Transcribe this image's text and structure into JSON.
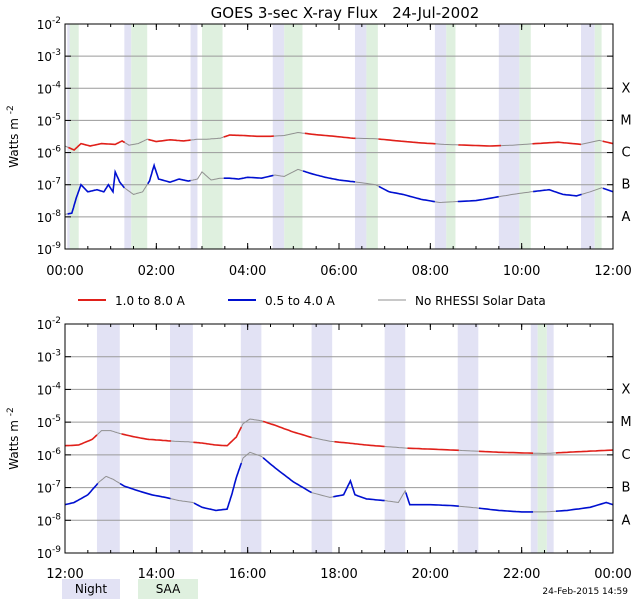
{
  "chart_data": {
    "type": "line",
    "title": "GOES 3-sec X-ray Flux   24-Jul-2002",
    "ylabel": "Watts m",
    "ylabel_sup": "-2",
    "yscale": "log",
    "ylim_exp": [
      -9,
      -2
    ],
    "ytick_exponents": [
      -9,
      -8,
      -7,
      -6,
      -5,
      -4,
      -3,
      -2
    ],
    "ytick_base": "10",
    "flare_classes": [
      {
        "label": "A",
        "exp": -8
      },
      {
        "label": "B",
        "exp": -7
      },
      {
        "label": "C",
        "exp": -6
      },
      {
        "label": "M",
        "exp": -5
      },
      {
        "label": "X",
        "exp": -4
      }
    ],
    "grid": true,
    "colors": {
      "long": "#e0201a",
      "short": "#0010d0",
      "nodata": "#909090",
      "night": "#e2e2f4",
      "saa": "#dff0df"
    },
    "legend": {
      "position": "between-panels",
      "entries": [
        {
          "key": "long",
          "label": "1.0 to 8.0 A"
        },
        {
          "key": "short",
          "label": "0.5 to 4.0 A"
        },
        {
          "key": "nodata",
          "label": "No RHESSI Solar Data"
        }
      ]
    },
    "shading_legend": {
      "night": "Night",
      "saa": "SAA"
    },
    "panels": [
      {
        "xlim_hours": [
          0,
          12
        ],
        "xtick_hours": [
          0,
          2,
          4,
          6,
          8,
          10,
          12
        ],
        "xtick_labels": [
          "00:00",
          "02:00",
          "04:00",
          "06:00",
          "08:00",
          "10:00",
          "12:00"
        ],
        "night": [
          [
            0.05,
            0.2
          ],
          [
            1.3,
            1.45
          ],
          [
            2.75,
            2.9
          ],
          [
            4.55,
            4.8
          ],
          [
            6.35,
            6.6
          ],
          [
            8.1,
            8.35
          ],
          [
            9.5,
            9.95
          ],
          [
            11.3,
            11.6
          ]
        ],
        "saa": [
          [
            0.1,
            0.3
          ],
          [
            1.45,
            1.8
          ],
          [
            3.0,
            3.45
          ],
          [
            4.8,
            5.2
          ],
          [
            6.6,
            6.85
          ],
          [
            8.35,
            8.55
          ],
          [
            9.95,
            10.2
          ],
          [
            11.6,
            11.75
          ]
        ],
        "nodata": [
          [
            0.0,
            0.05
          ],
          [
            1.3,
            1.8
          ],
          [
            2.75,
            3.45
          ],
          [
            4.55,
            5.2
          ],
          [
            6.35,
            6.85
          ],
          [
            8.1,
            8.55
          ],
          [
            9.5,
            10.2
          ],
          [
            11.3,
            11.75
          ]
        ],
        "long": [
          [
            0.0,
            1.6e-06
          ],
          [
            0.2,
            1.2e-06
          ],
          [
            0.35,
            1.9e-06
          ],
          [
            0.55,
            1.6e-06
          ],
          [
            0.8,
            1.9e-06
          ],
          [
            1.1,
            1.8e-06
          ],
          [
            1.25,
            2.3e-06
          ],
          [
            1.4,
            1.7e-06
          ],
          [
            1.6,
            1.9e-06
          ],
          [
            1.8,
            2.6e-06
          ],
          [
            2.0,
            2.2e-06
          ],
          [
            2.3,
            2.5e-06
          ],
          [
            2.6,
            2.3e-06
          ],
          [
            2.9,
            2.6e-06
          ],
          [
            3.1,
            2.6e-06
          ],
          [
            3.4,
            2.8e-06
          ],
          [
            3.6,
            3.5e-06
          ],
          [
            3.9,
            3.4e-06
          ],
          [
            4.2,
            3.2e-06
          ],
          [
            4.5,
            3.2e-06
          ],
          [
            4.8,
            3.4e-06
          ],
          [
            5.1,
            4.2e-06
          ],
          [
            5.5,
            3.6e-06
          ],
          [
            5.9,
            3.2e-06
          ],
          [
            6.3,
            2.8e-06
          ],
          [
            6.8,
            2.7e-06
          ],
          [
            7.3,
            2.3e-06
          ],
          [
            7.8,
            2e-06
          ],
          [
            8.3,
            1.8e-06
          ],
          [
            8.8,
            1.7e-06
          ],
          [
            9.3,
            1.6e-06
          ],
          [
            9.8,
            1.7e-06
          ],
          [
            10.3,
            1.9e-06
          ],
          [
            10.8,
            2.1e-06
          ],
          [
            11.3,
            1.8e-06
          ],
          [
            11.7,
            2.4e-06
          ],
          [
            12.0,
            1.9e-06
          ]
        ],
        "short": [
          [
            0.0,
            1.2e-08
          ],
          [
            0.15,
            1.3e-08
          ],
          [
            0.25,
            4e-08
          ],
          [
            0.35,
            1e-07
          ],
          [
            0.5,
            6e-08
          ],
          [
            0.7,
            7e-08
          ],
          [
            0.85,
            6e-08
          ],
          [
            0.95,
            1e-07
          ],
          [
            1.05,
            6e-08
          ],
          [
            1.1,
            2.5e-07
          ],
          [
            1.2,
            1.2e-07
          ],
          [
            1.3,
            8e-08
          ],
          [
            1.5,
            5e-08
          ],
          [
            1.7,
            6e-08
          ],
          [
            1.85,
            1.3e-07
          ],
          [
            1.95,
            4e-07
          ],
          [
            2.05,
            1.5e-07
          ],
          [
            2.3,
            1.2e-07
          ],
          [
            2.5,
            1.5e-07
          ],
          [
            2.7,
            1.3e-07
          ],
          [
            2.9,
            1.5e-07
          ],
          [
            3.0,
            2.5e-07
          ],
          [
            3.2,
            1.4e-07
          ],
          [
            3.4,
            1.6e-07
          ],
          [
            3.6,
            1.6e-07
          ],
          [
            3.8,
            1.5e-07
          ],
          [
            4.0,
            1.7e-07
          ],
          [
            4.3,
            1.6e-07
          ],
          [
            4.6,
            2e-07
          ],
          [
            4.8,
            1.8e-07
          ],
          [
            5.1,
            3e-07
          ],
          [
            5.4,
            2.2e-07
          ],
          [
            5.7,
            1.7e-07
          ],
          [
            6.0,
            1.4e-07
          ],
          [
            6.4,
            1.2e-07
          ],
          [
            6.8,
            1e-07
          ],
          [
            7.1,
            6e-08
          ],
          [
            7.4,
            5e-08
          ],
          [
            7.8,
            3.5e-08
          ],
          [
            8.2,
            2.8e-08
          ],
          [
            8.6,
            3e-08
          ],
          [
            9.0,
            3.2e-08
          ],
          [
            9.4,
            4e-08
          ],
          [
            9.8,
            5e-08
          ],
          [
            10.2,
            6e-08
          ],
          [
            10.6,
            7e-08
          ],
          [
            10.9,
            5e-08
          ],
          [
            11.2,
            4.5e-08
          ],
          [
            11.5,
            6e-08
          ],
          [
            11.75,
            8e-08
          ],
          [
            12.0,
            6e-08
          ]
        ]
      },
      {
        "xlim_hours": [
          12,
          24
        ],
        "xtick_hours": [
          12,
          14,
          16,
          18,
          20,
          22,
          24
        ],
        "xtick_labels": [
          "12:00",
          "14:00",
          "16:00",
          "18:00",
          "20:00",
          "22:00",
          "00:00"
        ],
        "night": [
          [
            12.7,
            13.2
          ],
          [
            14.3,
            14.8
          ],
          [
            15.85,
            16.3
          ],
          [
            17.4,
            17.85
          ],
          [
            19.0,
            19.45
          ],
          [
            20.6,
            21.05
          ],
          [
            22.2,
            22.35
          ],
          [
            22.55,
            22.7
          ]
        ],
        "saa": [
          [
            22.35,
            22.55
          ]
        ],
        "nodata": [
          [
            12.7,
            13.2
          ],
          [
            14.3,
            14.8
          ],
          [
            15.85,
            16.3
          ],
          [
            17.4,
            17.85
          ],
          [
            19.0,
            19.45
          ],
          [
            20.6,
            21.05
          ],
          [
            22.2,
            22.7
          ]
        ],
        "long": [
          [
            12.0,
            1.9e-06
          ],
          [
            12.3,
            2e-06
          ],
          [
            12.6,
            3e-06
          ],
          [
            12.8,
            5.5e-06
          ],
          [
            13.0,
            5.5e-06
          ],
          [
            13.2,
            4.5e-06
          ],
          [
            13.5,
            3.6e-06
          ],
          [
            13.8,
            3e-06
          ],
          [
            14.1,
            2.8e-06
          ],
          [
            14.4,
            2.6e-06
          ],
          [
            14.7,
            2.5e-06
          ],
          [
            15.0,
            2.3e-06
          ],
          [
            15.3,
            2e-06
          ],
          [
            15.55,
            1.9e-06
          ],
          [
            15.75,
            3.5e-06
          ],
          [
            15.9,
            9e-06
          ],
          [
            16.05,
            1.25e-05
          ],
          [
            16.3,
            1.1e-05
          ],
          [
            16.6,
            8e-06
          ],
          [
            17.0,
            5e-06
          ],
          [
            17.4,
            3.4e-06
          ],
          [
            17.8,
            2.6e-06
          ],
          [
            18.2,
            2.3e-06
          ],
          [
            18.6,
            2e-06
          ],
          [
            19.0,
            1.8e-06
          ],
          [
            19.5,
            1.6e-06
          ],
          [
            20.0,
            1.5e-06
          ],
          [
            20.5,
            1.4e-06
          ],
          [
            21.0,
            1.3e-06
          ],
          [
            21.5,
            1.2e-06
          ],
          [
            22.0,
            1.15e-06
          ],
          [
            22.5,
            1.1e-06
          ],
          [
            23.0,
            1.2e-06
          ],
          [
            23.5,
            1.3e-06
          ],
          [
            24.0,
            1.4e-06
          ]
        ],
        "short": [
          [
            12.0,
            3e-08
          ],
          [
            12.2,
            3.5e-08
          ],
          [
            12.5,
            6e-08
          ],
          [
            12.75,
            1.5e-07
          ],
          [
            12.9,
            2.2e-07
          ],
          [
            13.05,
            1.8e-07
          ],
          [
            13.3,
            1.1e-07
          ],
          [
            13.6,
            8e-08
          ],
          [
            13.9,
            6e-08
          ],
          [
            14.2,
            5e-08
          ],
          [
            14.5,
            4e-08
          ],
          [
            14.8,
            3.5e-08
          ],
          [
            15.0,
            2.5e-08
          ],
          [
            15.3,
            2e-08
          ],
          [
            15.55,
            2.2e-08
          ],
          [
            15.65,
            6e-08
          ],
          [
            15.75,
            2e-07
          ],
          [
            15.9,
            8e-07
          ],
          [
            16.05,
            1.2e-06
          ],
          [
            16.3,
            9e-07
          ],
          [
            16.6,
            4e-07
          ],
          [
            17.0,
            1.5e-07
          ],
          [
            17.4,
            7e-08
          ],
          [
            17.8,
            5e-08
          ],
          [
            18.1,
            6e-08
          ],
          [
            18.25,
            1.6e-07
          ],
          [
            18.35,
            6e-08
          ],
          [
            18.6,
            4.5e-08
          ],
          [
            19.0,
            4e-08
          ],
          [
            19.3,
            3.5e-08
          ],
          [
            19.45,
            8e-08
          ],
          [
            19.55,
            3e-08
          ],
          [
            20.0,
            3e-08
          ],
          [
            20.5,
            2.8e-08
          ],
          [
            21.0,
            2.4e-08
          ],
          [
            21.5,
            2e-08
          ],
          [
            22.0,
            1.8e-08
          ],
          [
            22.5,
            1.8e-08
          ],
          [
            23.0,
            2e-08
          ],
          [
            23.5,
            2.5e-08
          ],
          [
            23.85,
            3.5e-08
          ],
          [
            24.0,
            3e-08
          ]
        ]
      }
    ]
  },
  "footer": {
    "night_label": "Night",
    "saa_label": "SAA",
    "timestamp": "24-Feb-2015 14:59"
  }
}
